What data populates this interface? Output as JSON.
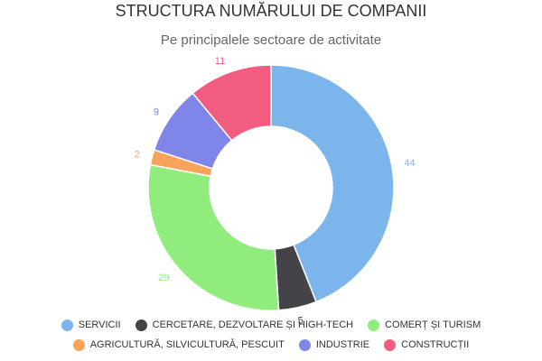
{
  "chart_data": {
    "type": "pie",
    "title": "STRUCTURA NUMĂRULUI DE COMPANII",
    "subtitle": "Pe principalele sectoare de activitate",
    "donut": true,
    "legend_position": "bottom",
    "series": [
      {
        "name": "SERVICII",
        "value": 44,
        "color": "#7cb5ec"
      },
      {
        "name": "CERCETARE, DEZVOLTARE ȘI HIGH-TECH",
        "value": 5,
        "color": "#434348"
      },
      {
        "name": "COMERȚ ȘI TURISM",
        "value": 29,
        "color": "#90ed7d"
      },
      {
        "name": "AGRICULTURĂ, SILVICULTURĂ, PESCUIT",
        "value": 2,
        "color": "#f7a35c"
      },
      {
        "name": "INDUSTRIE",
        "value": 9,
        "color": "#8085e9"
      },
      {
        "name": "CONSTRUCȚII",
        "value": 11,
        "color": "#f15c80"
      }
    ]
  }
}
